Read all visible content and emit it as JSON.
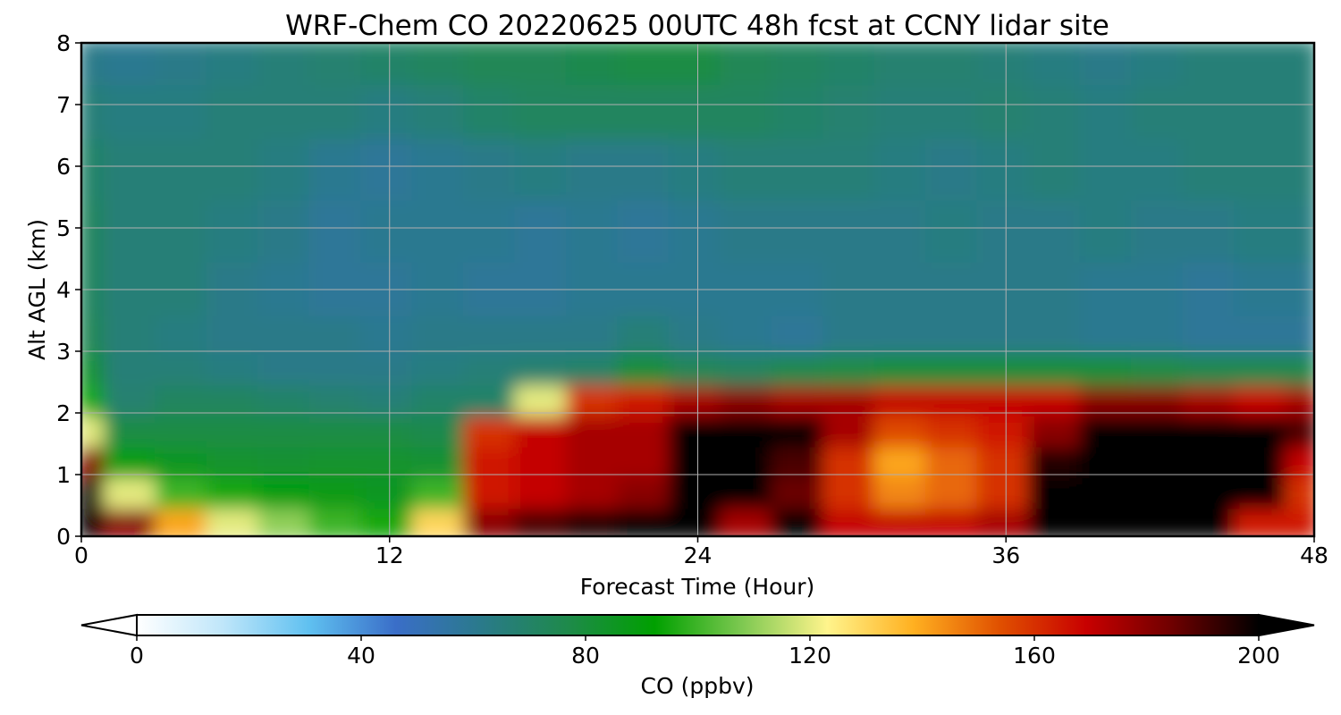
{
  "chart_data": {
    "type": "heatmap",
    "title": "WRF-Chem CO  20220625 00UTC 48h fcst at CCNY lidar site",
    "xlabel": "Forecast Time (Hour)",
    "ylabel": "Alt AGL (km)",
    "xlim": [
      0,
      48
    ],
    "ylim": [
      0,
      8
    ],
    "x_ticks": [
      "0",
      "12",
      "24",
      "36",
      "48"
    ],
    "y_ticks": [
      "0",
      "1",
      "2",
      "3",
      "4",
      "5",
      "6",
      "7",
      "8"
    ],
    "grid": true,
    "colorbar": {
      "label": "CO  (ppbv)",
      "min": 0,
      "max": 200,
      "ticks": [
        "0",
        "40",
        "80",
        "120",
        "160",
        "200"
      ],
      "extend": "both",
      "orientation": "horizontal",
      "colors": [
        "#ffffff",
        "#bfe6fa",
        "#5fc0f0",
        "#3a6ec8",
        "#2a7a8a",
        "#1e8a4a",
        "#00a000",
        "#7cc850",
        "#fff48c",
        "#ffb020",
        "#e05000",
        "#c80000",
        "#6e0000",
        "#000000"
      ]
    },
    "x": [
      0,
      2,
      4,
      6,
      8,
      10,
      12,
      14,
      16,
      18,
      20,
      22,
      24,
      26,
      28,
      30,
      32,
      34,
      36,
      38,
      40,
      42,
      44,
      46,
      48
    ],
    "y": [
      0.25,
      0.75,
      1.25,
      1.75,
      2.25,
      2.75,
      3.25,
      4,
      5,
      6,
      7,
      7.75
    ],
    "z": [
      [
        200,
        180,
        140,
        120,
        110,
        100,
        95,
        130,
        180,
        190,
        195,
        200,
        200,
        175,
        200,
        170,
        170,
        170,
        175,
        200,
        200,
        200,
        200,
        165,
        165
      ],
      [
        200,
        120,
        100,
        95,
        90,
        88,
        85,
        100,
        165,
        170,
        175,
        180,
        200,
        200,
        185,
        160,
        145,
        150,
        160,
        200,
        200,
        200,
        200,
        200,
        160
      ],
      [
        180,
        90,
        85,
        83,
        82,
        83,
        83,
        82,
        165,
        170,
        175,
        175,
        200,
        200,
        190,
        160,
        140,
        150,
        160,
        195,
        200,
        200,
        200,
        200,
        170
      ],
      [
        120,
        78,
        78,
        78,
        78,
        78,
        78,
        76,
        160,
        170,
        175,
        175,
        200,
        200,
        200,
        175,
        155,
        160,
        165,
        180,
        200,
        200,
        200,
        200,
        190
      ],
      [
        95,
        68,
        72,
        72,
        70,
        68,
        66,
        70,
        70,
        120,
        160,
        165,
        175,
        180,
        175,
        175,
        170,
        170,
        170,
        170,
        180,
        180,
        175,
        170,
        175
      ],
      [
        82,
        66,
        66,
        64,
        62,
        62,
        62,
        64,
        66,
        68,
        70,
        80,
        74,
        72,
        76,
        78,
        80,
        80,
        80,
        80,
        80,
        78,
        76,
        76,
        76
      ],
      [
        74,
        66,
        64,
        62,
        62,
        62,
        60,
        62,
        62,
        62,
        62,
        66,
        62,
        60,
        58,
        62,
        62,
        62,
        62,
        62,
        60,
        60,
        58,
        58,
        58
      ],
      [
        72,
        66,
        66,
        62,
        60,
        58,
        58,
        60,
        58,
        58,
        60,
        60,
        60,
        60,
        60,
        62,
        62,
        62,
        62,
        62,
        60,
        60,
        58,
        60,
        60
      ],
      [
        72,
        66,
        66,
        64,
        62,
        58,
        60,
        60,
        60,
        58,
        60,
        58,
        60,
        62,
        62,
        62,
        62,
        64,
        62,
        62,
        64,
        62,
        62,
        64,
        64
      ],
      [
        70,
        66,
        66,
        66,
        64,
        60,
        58,
        60,
        62,
        64,
        62,
        62,
        64,
        66,
        66,
        66,
        64,
        62,
        64,
        66,
        64,
        64,
        66,
        66,
        66
      ],
      [
        66,
        64,
        64,
        66,
        66,
        66,
        64,
        66,
        70,
        72,
        72,
        72,
        72,
        72,
        70,
        68,
        66,
        66,
        68,
        66,
        64,
        66,
        66,
        66,
        66
      ],
      [
        62,
        60,
        62,
        64,
        66,
        68,
        70,
        72,
        74,
        74,
        76,
        78,
        78,
        74,
        72,
        70,
        68,
        68,
        66,
        64,
        62,
        64,
        66,
        66,
        66
      ]
    ]
  }
}
